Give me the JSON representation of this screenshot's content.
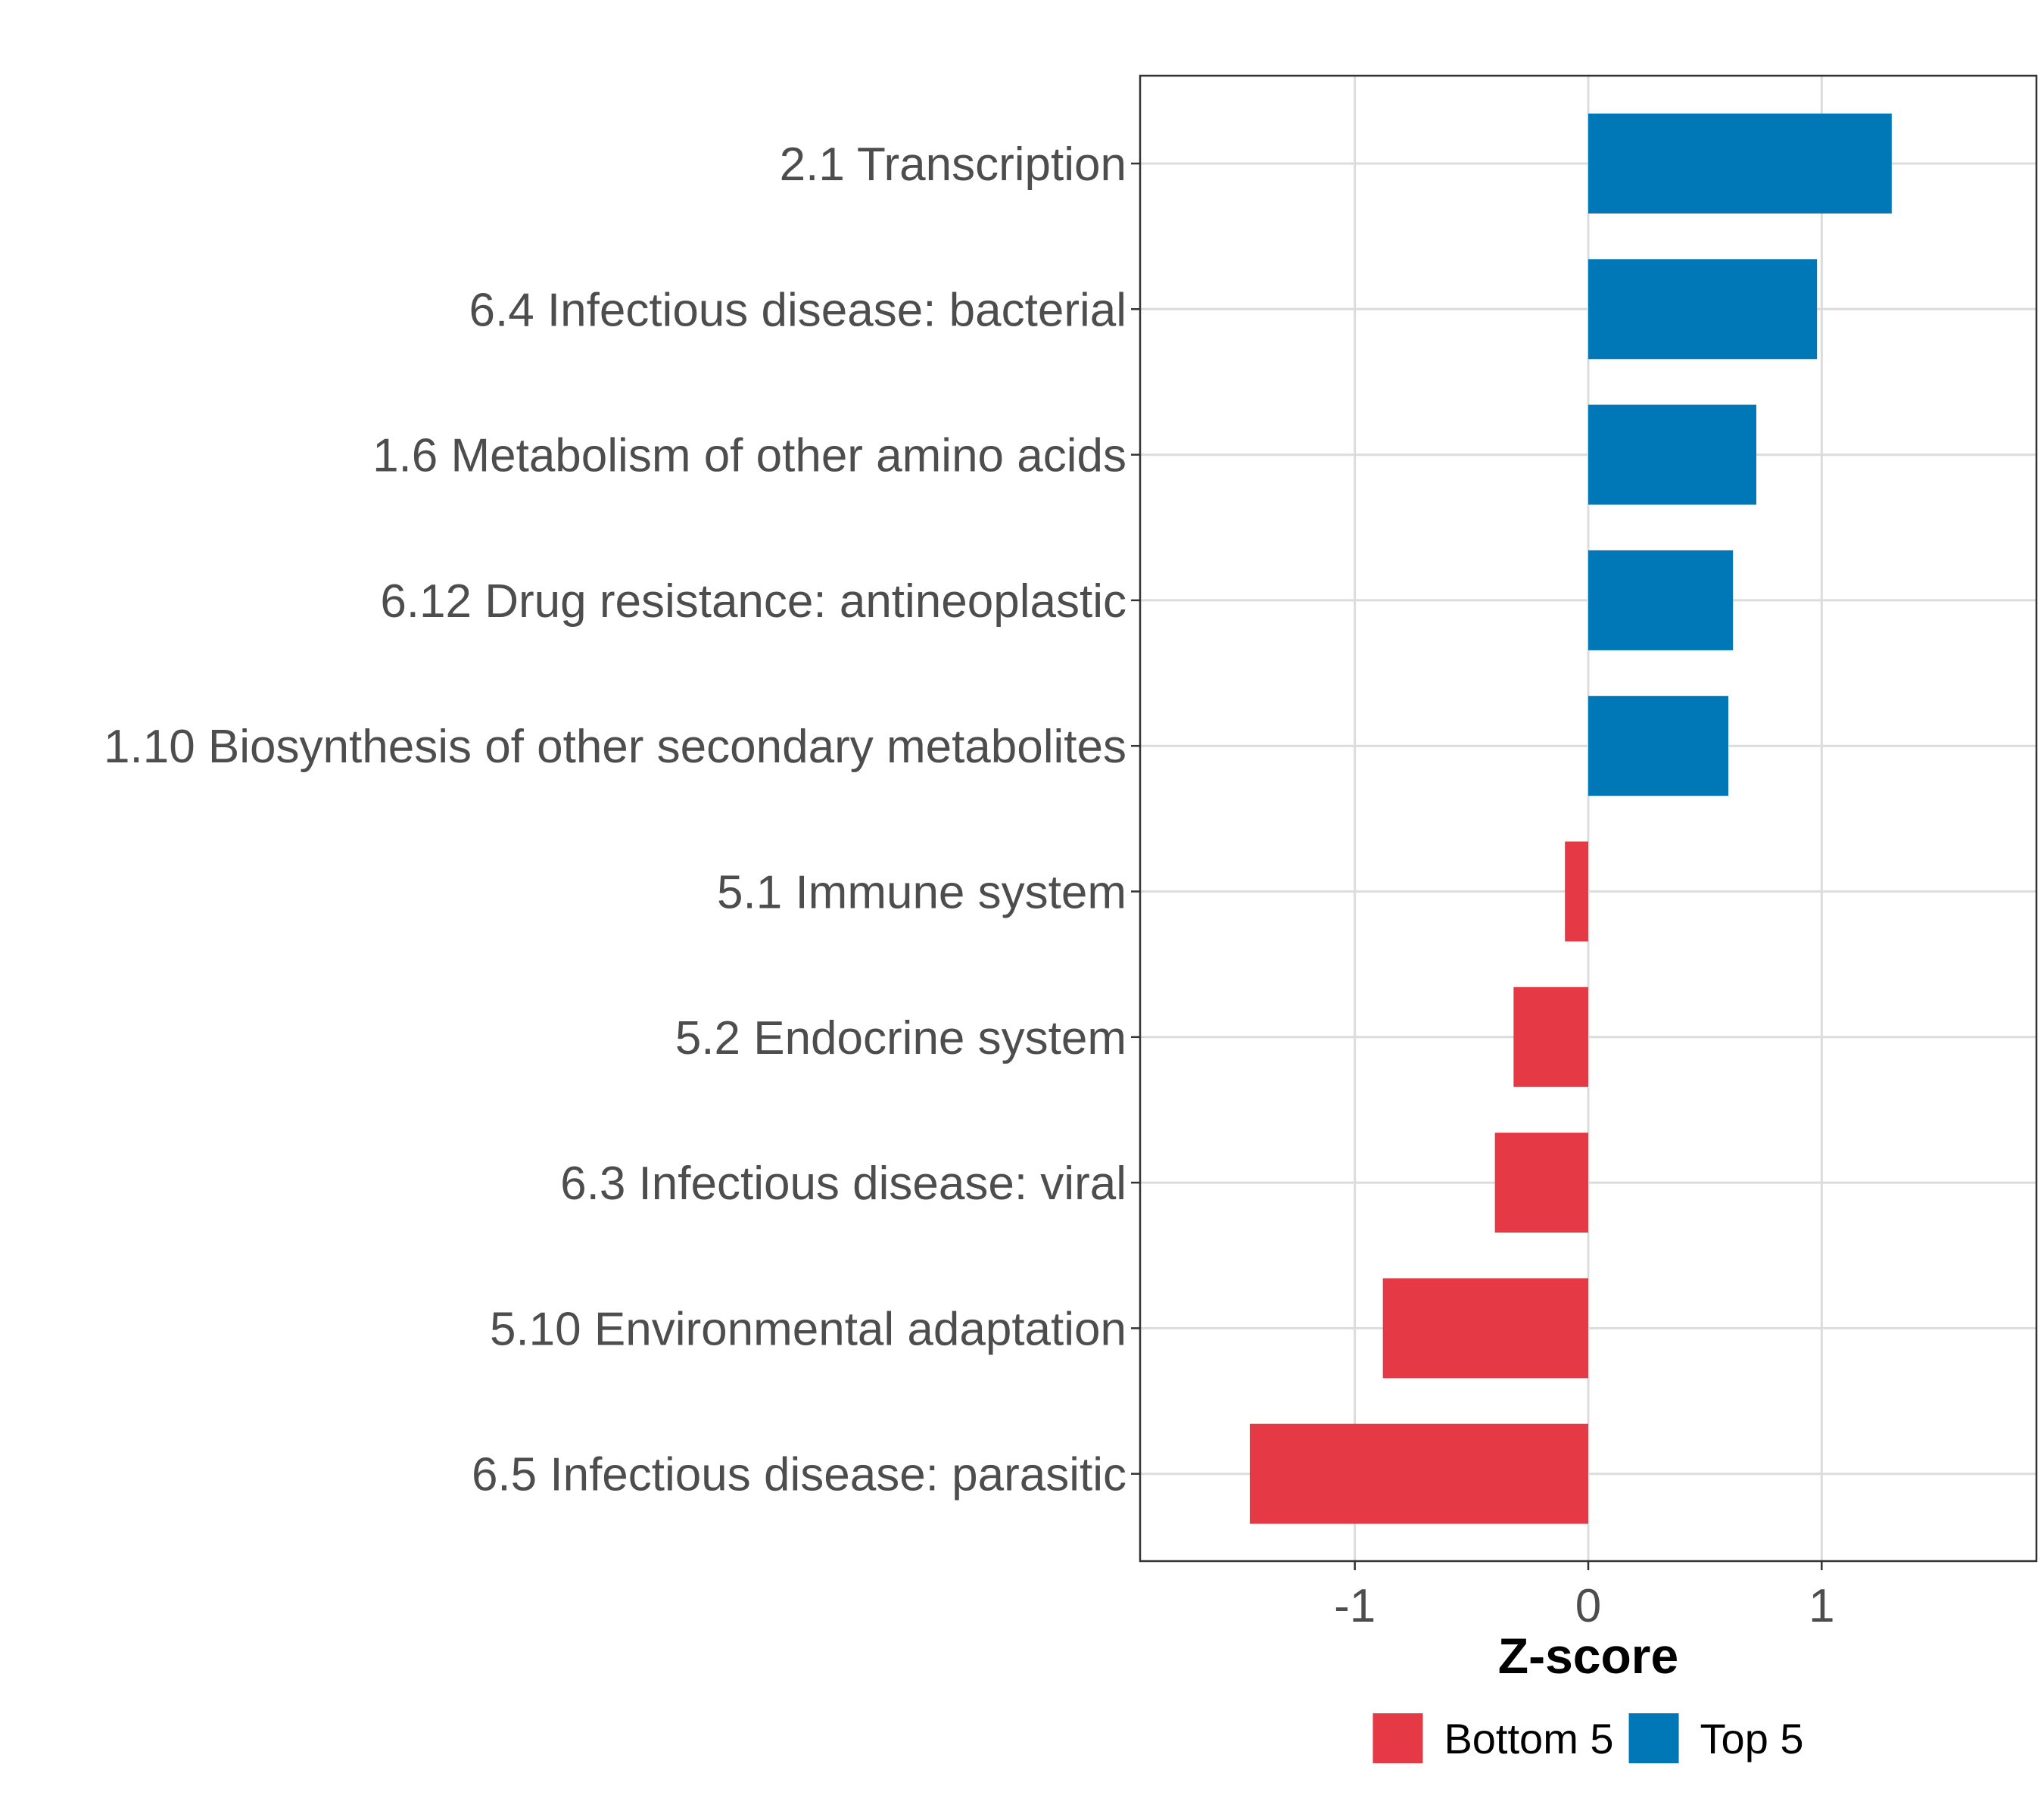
{
  "chart_data": {
    "type": "bar",
    "orientation": "horizontal",
    "title": "",
    "xlabel": "Z-score",
    "ylabel": "",
    "xlim": [
      -1.92,
      1.92
    ],
    "xticks": [
      {
        "value": -1,
        "label": "-1"
      },
      {
        "value": 0,
        "label": "0"
      },
      {
        "value": 1,
        "label": "1"
      }
    ],
    "grid": true,
    "legend_position": "bottom",
    "categories": [
      "2.1 Transcription",
      "6.4 Infectious disease: bacterial",
      "1.6 Metabolism of other amino acids",
      "6.12 Drug resistance: antineoplastic",
      "1.10 Biosynthesis of other secondary metabolites",
      "5.1 Immune system",
      "5.2 Endocrine system",
      "6.3 Infectious disease: viral",
      "5.10 Environmental adaptation",
      "6.5 Infectious disease: parasitic"
    ],
    "values": [
      1.3,
      0.98,
      0.72,
      0.62,
      0.6,
      -0.1,
      -0.32,
      -0.4,
      -0.88,
      -1.45
    ],
    "groups": [
      "Top 5",
      "Top 5",
      "Top 5",
      "Top 5",
      "Top 5",
      "Bottom 5",
      "Bottom 5",
      "Bottom 5",
      "Bottom 5",
      "Bottom 5"
    ],
    "legend": [
      {
        "name": "Bottom 5",
        "color": "#e63946"
      },
      {
        "name": "Top 5",
        "color": "#0077b6"
      }
    ]
  }
}
